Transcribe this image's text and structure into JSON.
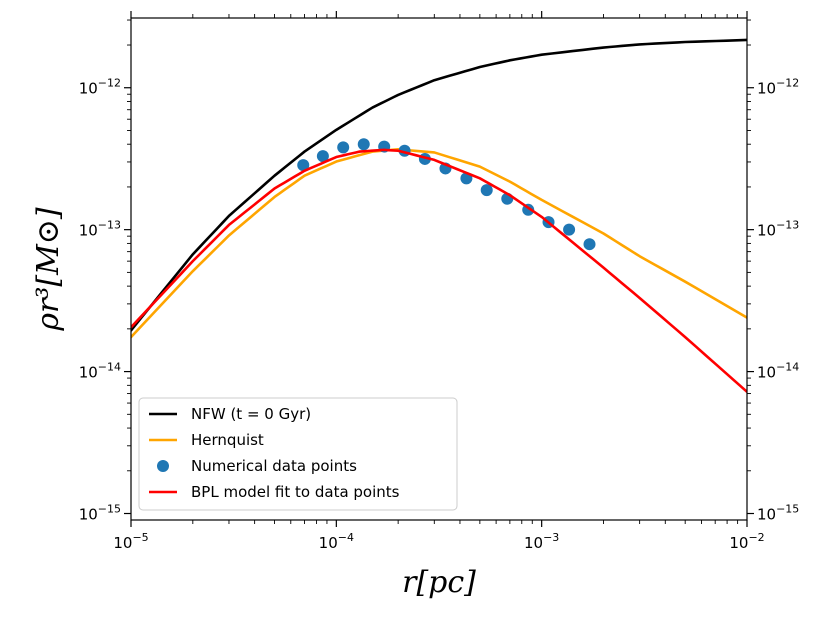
{
  "chart_data": {
    "type": "line",
    "title": "",
    "xlabel": "r[pc]",
    "ylabel": "ρr³[M⊙]",
    "xscale": "log",
    "yscale": "log",
    "xlim": [
      1e-05,
      0.01
    ],
    "ylim": [
      9e-16,
      3.1e-12
    ],
    "x_ticks": [
      {
        "value": 1e-05,
        "base": "10",
        "exp": "−5"
      },
      {
        "value": 0.0001,
        "base": "10",
        "exp": "−4"
      },
      {
        "value": 0.001,
        "base": "10",
        "exp": "−3"
      },
      {
        "value": 0.01,
        "base": "10",
        "exp": "−2"
      }
    ],
    "y_ticks": [
      {
        "value": 1e-15,
        "base": "10",
        "exp": "−15"
      },
      {
        "value": 1e-14,
        "base": "10",
        "exp": "−14"
      },
      {
        "value": 1e-13,
        "base": "10",
        "exp": "−13"
      },
      {
        "value": 1e-12,
        "base": "10",
        "exp": "−12"
      }
    ],
    "legend_position": "lower-left",
    "series": [
      {
        "name": "NFW (t = 0 Gyr)",
        "kind": "line",
        "color": "#000000",
        "x": [
          1e-05,
          2e-05,
          3e-05,
          5e-05,
          7e-05,
          0.0001,
          0.00015,
          0.0002,
          0.0003,
          0.0005,
          0.0007,
          0.001,
          0.002,
          0.003,
          0.005,
          0.01
        ],
        "y": [
          1.95e-14,
          6.7e-14,
          1.25e-13,
          2.4e-13,
          3.55e-13,
          5.05e-13,
          7.25e-13,
          8.9e-13,
          1.13e-12,
          1.4e-12,
          1.56e-12,
          1.71e-12,
          1.92e-12,
          2.02e-12,
          2.1e-12,
          2.17e-12
        ]
      },
      {
        "name": "Hernquist",
        "kind": "line",
        "color": "#ffa500",
        "x": [
          1e-05,
          2e-05,
          3e-05,
          5e-05,
          7e-05,
          0.0001,
          0.00015,
          0.0002,
          0.0003,
          0.0005,
          0.0007,
          0.001,
          0.002,
          0.003,
          0.005,
          0.01
        ],
        "y": [
          1.75e-14,
          5.1e-14,
          9.1e-14,
          1.7e-13,
          2.4e-13,
          3.02e-13,
          3.55e-13,
          3.68e-13,
          3.5e-13,
          2.78e-13,
          2.18e-13,
          1.62e-13,
          9.4e-14,
          6.5e-14,
          4.3e-14,
          2.4e-14
        ]
      },
      {
        "name": "Numerical data points",
        "kind": "scatter",
        "color": "#1f77b4",
        "x": [
          6.9e-05,
          8.6e-05,
          0.000108,
          0.000136,
          0.000171,
          0.000215,
          0.00027,
          0.00034,
          0.00043,
          0.00054,
          0.00068,
          0.00086,
          0.00108,
          0.00136,
          0.00171
        ],
        "y": [
          2.85e-13,
          3.3e-13,
          3.8e-13,
          4e-13,
          3.85e-13,
          3.6e-13,
          3.15e-13,
          2.7e-13,
          2.3e-13,
          1.9e-13,
          1.65e-13,
          1.38e-13,
          1.13e-13,
          1e-13,
          7.9e-14
        ]
      },
      {
        "name": "BPL model fit to data points",
        "kind": "line",
        "color": "#ff0000",
        "x": [
          1e-05,
          2e-05,
          3e-05,
          5e-05,
          7e-05,
          0.0001,
          0.00013,
          0.00017,
          0.0002,
          0.0003,
          0.0005,
          0.0007,
          0.001,
          0.002,
          0.003,
          0.005,
          0.01
        ],
        "y": [
          2.05e-14,
          6e-14,
          1.08e-13,
          1.95e-13,
          2.6e-13,
          3.25e-13,
          3.55e-13,
          3.65e-13,
          3.6e-13,
          3.1e-13,
          2.3e-13,
          1.75e-13,
          1.23e-13,
          5.4e-14,
          3.3e-14,
          1.75e-14,
          7.2e-15
        ]
      }
    ]
  }
}
